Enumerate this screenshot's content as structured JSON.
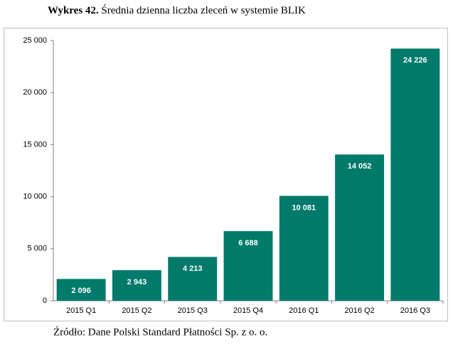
{
  "chart_data": {
    "type": "bar",
    "title_label": "Wykres 42.",
    "title": "Średnia dzienna liczba zleceń w systemie BLIK",
    "source": "Źródło: Dane Polski Standard Płatności Sp. z o. o.",
    "categories": [
      "2015 Q1",
      "2015 Q2",
      "2015 Q3",
      "2015 Q4",
      "2016 Q1",
      "2016 Q2",
      "2016 Q3"
    ],
    "values": [
      2096,
      2943,
      4213,
      6688,
      10081,
      14052,
      24226
    ],
    "value_labels": [
      "2 096",
      "2 943",
      "4 213",
      "6 688",
      "10 081",
      "14 052",
      "24 226"
    ],
    "color": "#007a6b",
    "ylim": [
      0,
      25000
    ],
    "yticks": [
      0,
      {
        "value": 5000,
        "label": "5 000"
      },
      {
        "value": 10000,
        "label": "10 000"
      },
      {
        "value": 15000,
        "label": "15 000"
      },
      {
        "value": 20000,
        "label": "20 000"
      },
      {
        "value": 25000,
        "label": "25 000"
      }
    ],
    "grid": false
  }
}
